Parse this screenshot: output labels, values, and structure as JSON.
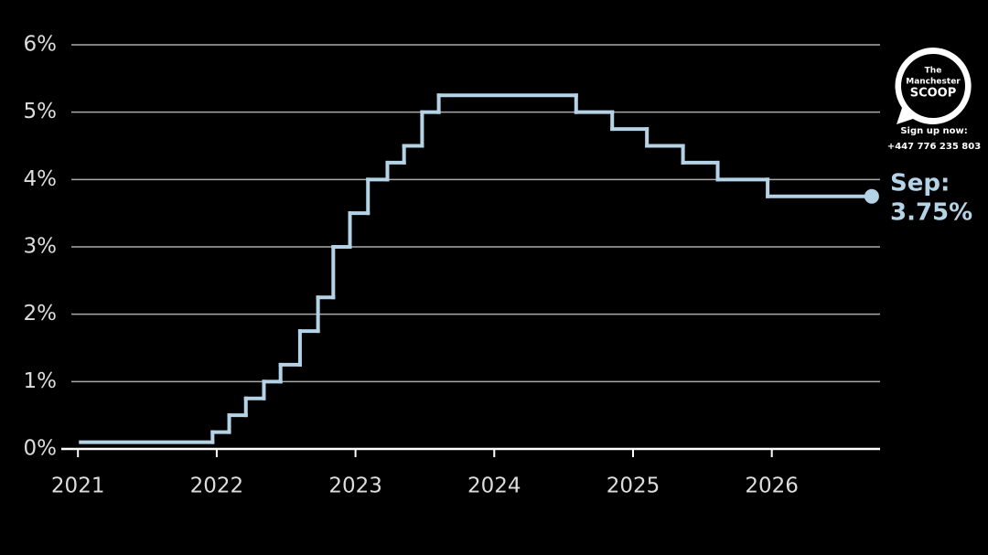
{
  "chart_data": {
    "type": "step",
    "x": [
      2021.02,
      2021.97,
      2022.09,
      2022.21,
      2022.34,
      2022.46,
      2022.6,
      2022.73,
      2022.84,
      2022.96,
      2023.09,
      2023.23,
      2023.35,
      2023.48,
      2023.6,
      2024.59,
      2024.85,
      2025.1,
      2025.36,
      2025.61,
      2025.97,
      2026.72
    ],
    "values": [
      0.1,
      0.25,
      0.5,
      0.75,
      1,
      1.25,
      1.75,
      2.25,
      3,
      3.5,
      4,
      4.25,
      4.5,
      5,
      5.25,
      5,
      4.75,
      4.5,
      4.25,
      4,
      3.75,
      3.75
    ],
    "step": "post",
    "color": "#b4d3e6",
    "xlim": [
      2020.88,
      2026.78
    ],
    "xticks": [
      2021,
      2022,
      2023,
      2024,
      2025,
      2026
    ],
    "ylim": [
      0,
      6
    ],
    "yticks": [
      {
        "value": 0,
        "label": "0%"
      },
      {
        "value": 1,
        "label": "1%"
      },
      {
        "value": 2,
        "label": "2%"
      },
      {
        "value": 3,
        "label": "3%"
      },
      {
        "value": 4,
        "label": "4%"
      },
      {
        "value": 5,
        "label": "5%"
      },
      {
        "value": 6,
        "label": "6%"
      }
    ],
    "grid": true,
    "annotation": {
      "month": "Sep:",
      "value_label": "3.75%"
    }
  },
  "logo": {
    "line1": "The",
    "line2": "Manchester",
    "line3": "SCOOP",
    "signup": "Sign up now:",
    "phone": "+447 776 235 803"
  }
}
